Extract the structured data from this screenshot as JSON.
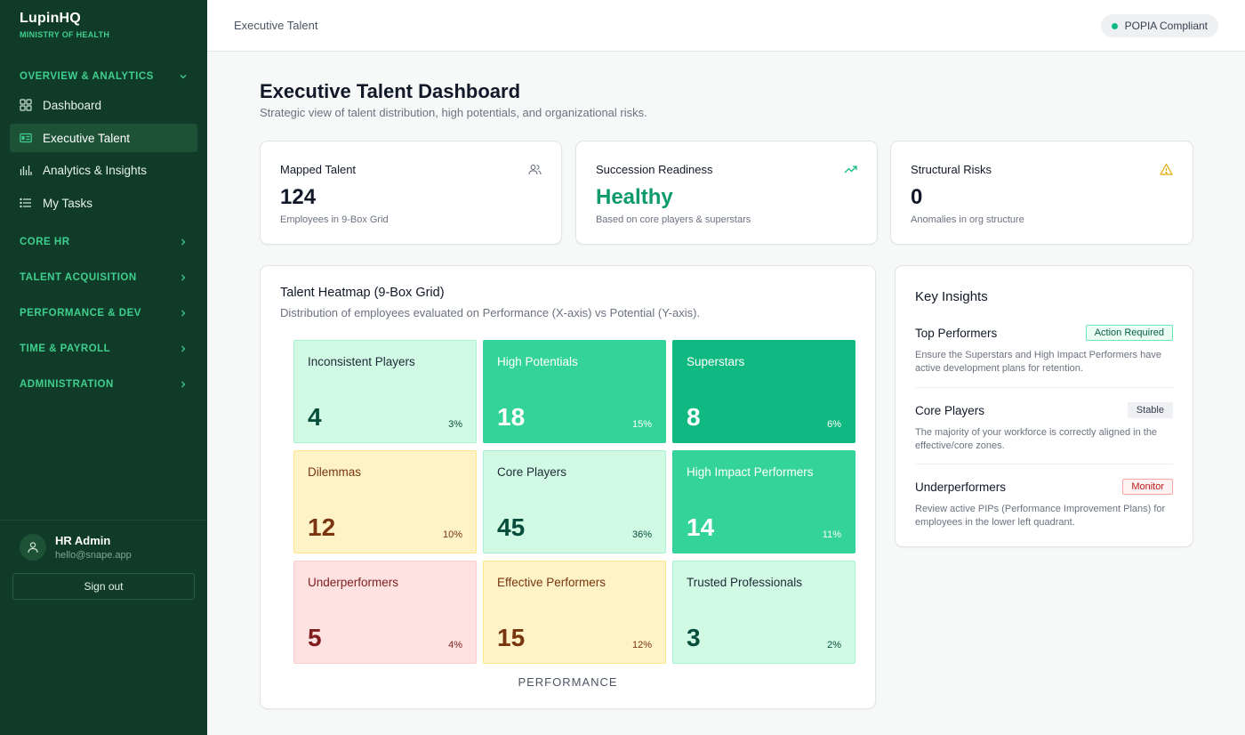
{
  "brand": {
    "name": "LupinHQ",
    "subtitle": "MINISTRY OF HEALTH"
  },
  "sidebar": {
    "sections": [
      {
        "label": "OVERVIEW & ANALYTICS",
        "expanded": true
      },
      {
        "label": "CORE HR",
        "expanded": false
      },
      {
        "label": "TALENT ACQUISITION",
        "expanded": false
      },
      {
        "label": "PERFORMANCE & DEV",
        "expanded": false
      },
      {
        "label": "TIME & PAYROLL",
        "expanded": false
      },
      {
        "label": "ADMINISTRATION",
        "expanded": false
      }
    ],
    "items": [
      {
        "label": "Dashboard",
        "icon": "grid-icon",
        "active": false
      },
      {
        "label": "Executive Talent",
        "icon": "id-card-icon",
        "active": true
      },
      {
        "label": "Analytics & Insights",
        "icon": "bar-chart-icon",
        "active": false
      },
      {
        "label": "My Tasks",
        "icon": "list-icon",
        "active": false
      }
    ],
    "user": {
      "name": "HR Admin",
      "email": "hello@snape.app"
    },
    "signout_label": "Sign out"
  },
  "header": {
    "title": "Executive Talent",
    "compliance": "POPIA Compliant"
  },
  "page": {
    "title": "Executive Talent Dashboard",
    "subtitle": "Strategic view of talent distribution, high potentials, and organizational risks."
  },
  "stats": [
    {
      "label": "Mapped Talent",
      "value": "124",
      "note": "Employees in 9-Box Grid",
      "icon": "users-icon"
    },
    {
      "label": "Succession Readiness",
      "value": "Healthy",
      "note": "Based on core players & superstars",
      "icon": "trending-up-icon"
    },
    {
      "label": "Structural Risks",
      "value": "0",
      "note": "Anomalies in org structure",
      "icon": "warning-icon"
    }
  ],
  "heatmap": {
    "title": "Talent Heatmap (9-Box Grid)",
    "subtitle": "Distribution of employees evaluated on Performance (X-axis) vs Potential (Y-axis).",
    "x_label": "PERFORMANCE",
    "cells": [
      {
        "name": "Inconsistent Players",
        "count": "4",
        "pct": "3%",
        "bg": "#d1fae5",
        "border": "#a7f3d0",
        "text": "#1f2937",
        "num": "#064e3b"
      },
      {
        "name": "High Potentials",
        "count": "18",
        "pct": "15%",
        "bg": "#34d399",
        "border": "#34d399",
        "text": "#ffffff",
        "num": "#ffffff"
      },
      {
        "name": "Superstars",
        "count": "8",
        "pct": "6%",
        "bg": "#10b981",
        "border": "#10b981",
        "text": "#ffffff",
        "num": "#ffffff"
      },
      {
        "name": "Dilemmas",
        "count": "12",
        "pct": "10%",
        "bg": "#fef3c7",
        "border": "#fde68a",
        "text": "#78350f",
        "num": "#78350f"
      },
      {
        "name": "Core Players",
        "count": "45",
        "pct": "36%",
        "bg": "#d1fae5",
        "border": "#a7f3d0",
        "text": "#1f2937",
        "num": "#064e3b"
      },
      {
        "name": "High Impact Performers",
        "count": "14",
        "pct": "11%",
        "bg": "#34d399",
        "border": "#34d399",
        "text": "#ffffff",
        "num": "#ffffff"
      },
      {
        "name": "Underperformers",
        "count": "5",
        "pct": "4%",
        "bg": "#fee2e2",
        "border": "#fecaca",
        "text": "#7f1d1d",
        "num": "#7f1d1d"
      },
      {
        "name": "Effective Performers",
        "count": "15",
        "pct": "12%",
        "bg": "#fef3c7",
        "border": "#fde68a",
        "text": "#78350f",
        "num": "#78350f"
      },
      {
        "name": "Trusted Professionals",
        "count": "3",
        "pct": "2%",
        "bg": "#d1fae5",
        "border": "#a7f3d0",
        "text": "#1f2937",
        "num": "#064e3b"
      }
    ]
  },
  "insights": {
    "title": "Key Insights",
    "items": [
      {
        "name": "Top Performers",
        "badge": "Action Required",
        "badge_bg": "#ecfdf5",
        "badge_border": "#6ee7b7",
        "badge_color": "#065f46",
        "text": "Ensure the Superstars and High Impact Performers have active development plans for retention."
      },
      {
        "name": "Core Players",
        "badge": "Stable",
        "badge_bg": "#eef0f3",
        "badge_border": "#eef0f3",
        "badge_color": "#374151",
        "text": "The majority of your workforce is correctly aligned in the effective/core zones."
      },
      {
        "name": "Underperformers",
        "badge": "Monitor",
        "badge_bg": "#fef2f2",
        "badge_border": "#fca5a5",
        "badge_color": "#b91c1c",
        "text": "Review active PIPs (Performance Improvement Plans) for employees in the lower left quadrant."
      }
    ]
  }
}
